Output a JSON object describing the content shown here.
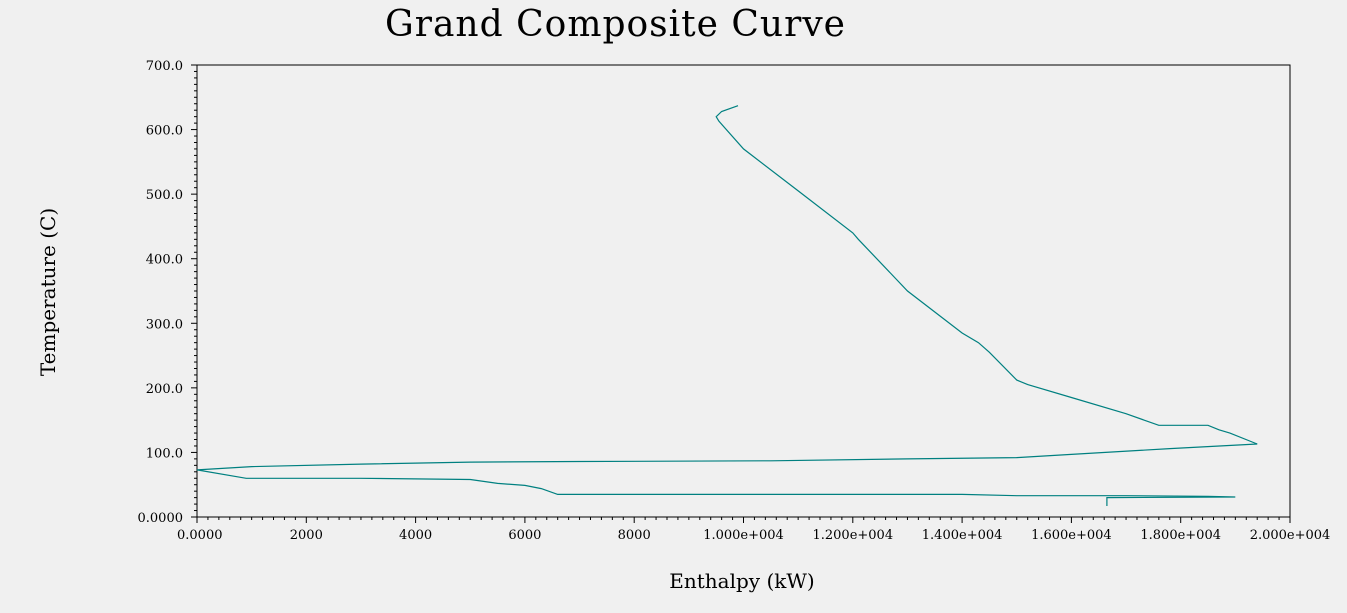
{
  "chart_data": {
    "type": "line",
    "title": "Grand Composite Curve",
    "xlabel": "Enthalpy (kW)",
    "ylabel": "Temperature (C)",
    "xlim": [
      0,
      20000
    ],
    "ylim": [
      0,
      700
    ],
    "grid": false,
    "x_ticks": [
      {
        "value": 0,
        "label": "0.0000"
      },
      {
        "value": 2000,
        "label": "2000"
      },
      {
        "value": 4000,
        "label": "4000"
      },
      {
        "value": 6000,
        "label": "6000"
      },
      {
        "value": 8000,
        "label": "8000"
      },
      {
        "value": 10000,
        "label": "1.000e+004"
      },
      {
        "value": 12000,
        "label": "1.200e+004"
      },
      {
        "value": 14000,
        "label": "1.400e+004"
      },
      {
        "value": 16000,
        "label": "1.600e+004"
      },
      {
        "value": 18000,
        "label": "1.800e+004"
      },
      {
        "value": 20000,
        "label": "2.000e+004"
      }
    ],
    "y_ticks": [
      {
        "value": 0,
        "label": "0.0000"
      },
      {
        "value": 100,
        "label": "100.0"
      },
      {
        "value": 200,
        "label": "200.0"
      },
      {
        "value": 300,
        "label": "300.0"
      },
      {
        "value": 400,
        "label": "400.0"
      },
      {
        "value": 500,
        "label": "500.0"
      },
      {
        "value": 600,
        "label": "600.0"
      },
      {
        "value": 700,
        "label": "700.0"
      }
    ],
    "line_color": "#008080",
    "series": [
      {
        "x": [
          9900,
          9600,
          9500,
          9550,
          10000,
          11000,
          12000,
          12100,
          13000,
          14000,
          14300,
          14500,
          15000,
          15200,
          16000,
          17000,
          17600,
          18500,
          18700,
          18900,
          19400,
          17800,
          16000,
          15000,
          13000,
          10500,
          7000,
          5000,
          3000,
          1000,
          0,
          900,
          3000,
          5000,
          5500,
          6000,
          6300,
          6600,
          10000,
          14000,
          15000,
          17000,
          18500,
          19000,
          16650,
          16650
        ],
        "y": [
          637,
          628,
          620,
          613,
          570,
          505,
          440,
          430,
          350,
          285,
          270,
          255,
          212,
          205,
          185,
          160,
          142,
          142,
          135,
          130,
          113,
          106,
          97,
          92,
          90,
          87,
          86,
          85,
          82,
          78,
          73,
          60,
          60,
          58,
          52,
          49,
          44,
          35,
          35,
          35,
          33,
          33,
          32,
          31,
          30,
          17
        ]
      }
    ]
  }
}
